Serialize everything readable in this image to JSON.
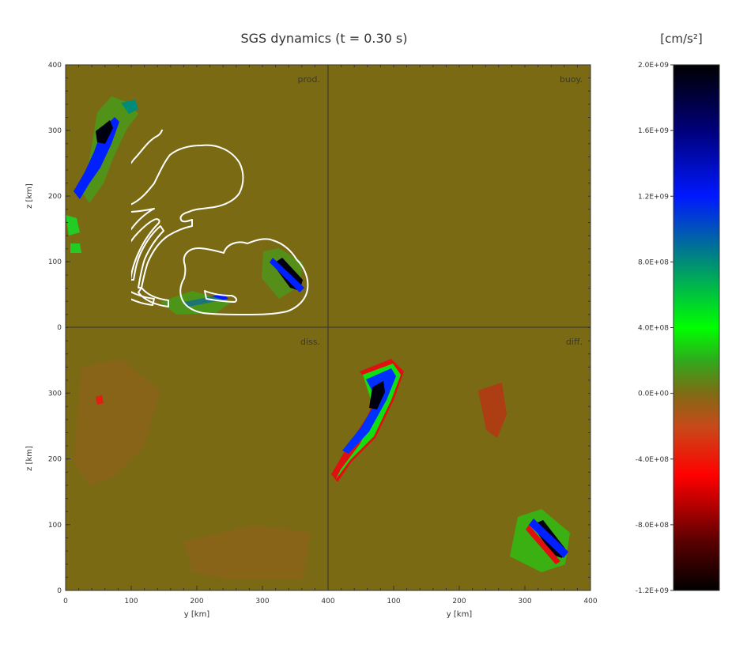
{
  "chart_data": {
    "type": "heatmap",
    "title": "SGS dynamics (t = 0.30 s)",
    "xlabel": "y [km]",
    "ylabel": "z [km]",
    "xlim": [
      0,
      400
    ],
    "ylim": [
      0,
      400
    ],
    "xticks": [
      "0",
      "100",
      "200",
      "300",
      "400"
    ],
    "yticks": [
      "0",
      "100",
      "200",
      "300",
      "400"
    ],
    "panels": [
      {
        "label": "prod.",
        "position": "top-left"
      },
      {
        "label": "buoy.",
        "position": "top-right"
      },
      {
        "label": "diss.",
        "position": "bottom-left"
      },
      {
        "label": "diff.",
        "position": "bottom-right"
      }
    ],
    "colorbar": {
      "unit": "[cm/s²]",
      "min": -1200000000.0,
      "max": 2000000000.0,
      "tick_values": [
        2000000000.0,
        1600000000.0,
        1200000000.0,
        800000000.0,
        400000000.0,
        0,
        -400000000.0,
        -800000000.0,
        -1200000000.0
      ],
      "tick_labels": [
        "2.0E+09",
        "1.6E+09",
        "1.2E+09",
        "8.0E+08",
        "4.0E+08",
        "0.0E+00",
        "-4.0E+08",
        "-8.0E+08",
        "-1.2E+09"
      ],
      "stops": [
        {
          "value": -1200000000.0,
          "color": "#000000"
        },
        {
          "value": -900000000.0,
          "color": "#5a0000"
        },
        {
          "value": -500000000.0,
          "color": "#ff0000"
        },
        {
          "value": -200000000.0,
          "color": "#c84a1a"
        },
        {
          "value": 0,
          "color": "#7f6b14"
        },
        {
          "value": 200000000.0,
          "color": "#2faa1c"
        },
        {
          "value": 400000000.0,
          "color": "#00ff00"
        },
        {
          "value": 800000000.0,
          "color": "#008c78"
        },
        {
          "value": 1200000000.0,
          "color": "#0018ff"
        },
        {
          "value": 1600000000.0,
          "color": "#00007a"
        },
        {
          "value": 2000000000.0,
          "color": "#000000"
        }
      ]
    },
    "background_value": 0,
    "background_color": "#7b6a14",
    "contour_color": "#ffffff"
  }
}
